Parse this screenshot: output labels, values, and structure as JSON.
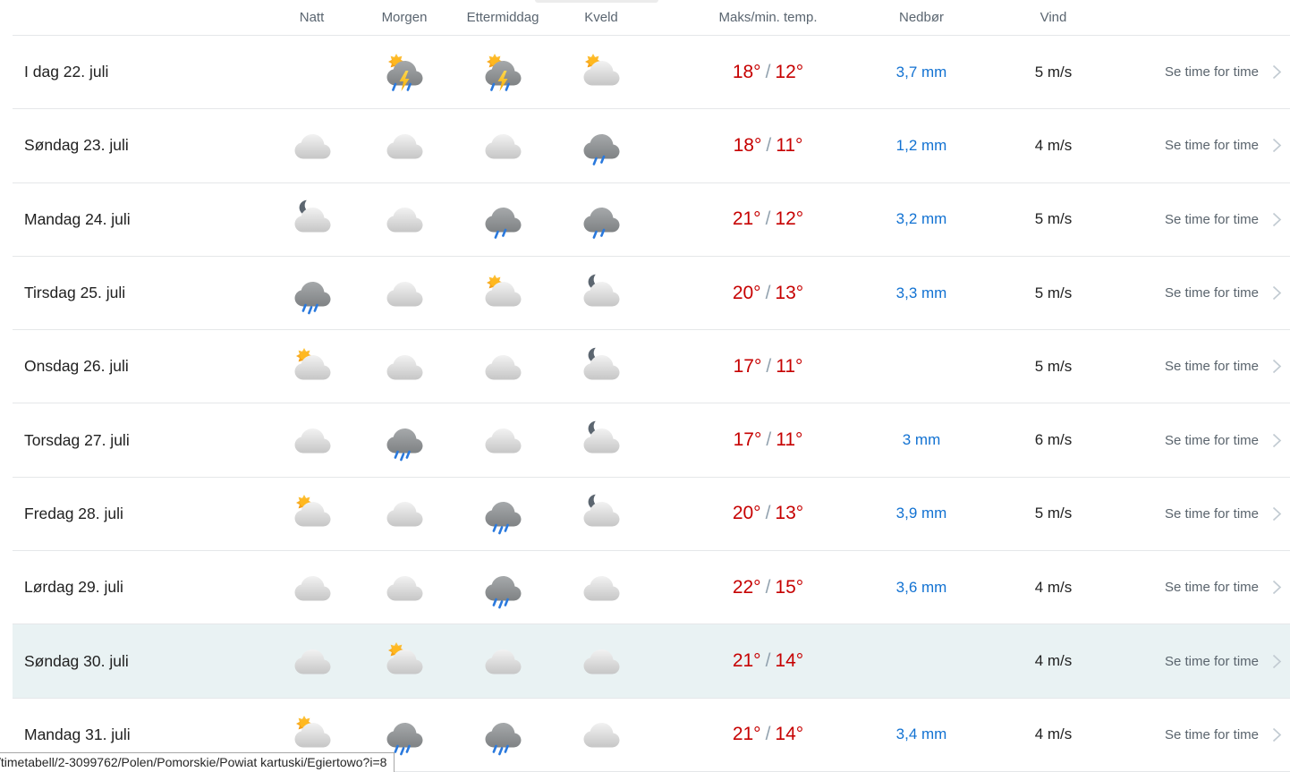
{
  "table": {
    "headers": {
      "natt": "Natt",
      "morgen": "Morgen",
      "ettermiddag": "Ettermiddag",
      "kveld": "Kveld",
      "temp": "Maks/min. temp.",
      "nedbor": "Nedbør",
      "vind": "Vind"
    },
    "link_label": "Se time for time",
    "rows": [
      {
        "day": "I dag 22. juli",
        "icons": {
          "natt": "none",
          "morgen": "thunderstorm",
          "ettermiddag": "thunderstorm",
          "kveld": "partly-cloudy-day"
        },
        "temp_max": "18°",
        "temp_min": "12°",
        "precipitation": "3,7 mm",
        "wind": "5 m/s",
        "highlighted": false
      },
      {
        "day": "Søndag 23. juli",
        "icons": {
          "natt": "cloudy",
          "morgen": "cloudy",
          "ettermiddag": "cloudy",
          "kveld": "light-rain"
        },
        "temp_max": "18°",
        "temp_min": "11°",
        "precipitation": "1,2 mm",
        "wind": "4 m/s",
        "highlighted": false
      },
      {
        "day": "Mandag 24. juli",
        "icons": {
          "natt": "partly-cloudy-night",
          "morgen": "cloudy",
          "ettermiddag": "light-rain",
          "kveld": "light-rain"
        },
        "temp_max": "21°",
        "temp_min": "12°",
        "precipitation": "3,2 mm",
        "wind": "5 m/s",
        "highlighted": false
      },
      {
        "day": "Tirsdag 25. juli",
        "icons": {
          "natt": "rain",
          "morgen": "cloudy",
          "ettermiddag": "partly-cloudy-day",
          "kveld": "partly-cloudy-night"
        },
        "temp_max": "20°",
        "temp_min": "13°",
        "precipitation": "3,3 mm",
        "wind": "5 m/s",
        "highlighted": false
      },
      {
        "day": "Onsdag 26. juli",
        "icons": {
          "natt": "partly-cloudy-day",
          "morgen": "cloudy",
          "ettermiddag": "cloudy",
          "kveld": "partly-cloudy-night"
        },
        "temp_max": "17°",
        "temp_min": "11°",
        "precipitation": "",
        "wind": "5 m/s",
        "highlighted": false
      },
      {
        "day": "Torsdag 27. juli",
        "icons": {
          "natt": "cloudy",
          "morgen": "rain",
          "ettermiddag": "cloudy",
          "kveld": "partly-cloudy-night"
        },
        "temp_max": "17°",
        "temp_min": "11°",
        "precipitation": "3 mm",
        "wind": "6 m/s",
        "highlighted": false
      },
      {
        "day": "Fredag 28. juli",
        "icons": {
          "natt": "partly-cloudy-day",
          "morgen": "cloudy",
          "ettermiddag": "rain",
          "kveld": "partly-cloudy-night"
        },
        "temp_max": "20°",
        "temp_min": "13°",
        "precipitation": "3,9 mm",
        "wind": "5 m/s",
        "highlighted": false
      },
      {
        "day": "Lørdag 29. juli",
        "icons": {
          "natt": "cloudy",
          "morgen": "cloudy",
          "ettermiddag": "rain",
          "kveld": "cloudy"
        },
        "temp_max": "22°",
        "temp_min": "15°",
        "precipitation": "3,6 mm",
        "wind": "4 m/s",
        "highlighted": false
      },
      {
        "day": "Søndag 30. juli",
        "icons": {
          "natt": "cloudy",
          "morgen": "partly-cloudy-day",
          "ettermiddag": "cloudy",
          "kveld": "cloudy"
        },
        "temp_max": "21°",
        "temp_min": "14°",
        "precipitation": "",
        "wind": "4 m/s",
        "highlighted": true
      },
      {
        "day": "Mandag 31. juli",
        "icons": {
          "natt": "partly-cloudy-day",
          "morgen": "rain",
          "ettermiddag": "rain",
          "kveld": "cloudy"
        },
        "temp_max": "21°",
        "temp_min": "14°",
        "precipitation": "3,4 mm",
        "wind": "4 m/s",
        "highlighted": false
      }
    ]
  },
  "statusbar": {
    "url": "/timetabell/2-3099762/Polen/Pomorskie/Powiat kartuski/Egiertowo?i=8"
  },
  "colors": {
    "temp_red": "#c60000",
    "precip_blue": "#1272d2",
    "text_dark": "#212121",
    "text_gray": "#5a6570",
    "row_border": "#e5e7e9",
    "highlight_bg": "#e9f2f3",
    "chevron": "#c2cbd2"
  }
}
